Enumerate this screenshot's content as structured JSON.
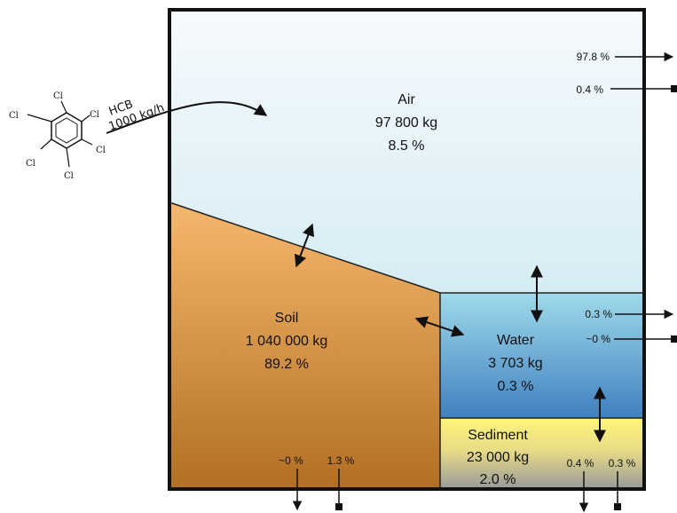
{
  "compartments": {
    "air": {
      "name": "Air",
      "mass": "97 800 kg",
      "share": "8.5 %"
    },
    "soil": {
      "name": "Soil",
      "mass": "1 040 000 kg",
      "share": "89.2 %"
    },
    "water": {
      "name": "Water",
      "mass": "3 703 kg",
      "share": "0.3 %"
    },
    "sediment": {
      "name": "Sediment",
      "mass": "23 000 kg",
      "share": "2.0 %"
    }
  },
  "input": {
    "substance": "HCB",
    "rate": "1000 kg/h"
  },
  "molecule": {
    "substituent": "Cl"
  },
  "flows": {
    "air_advection": "97.8 %",
    "air_reaction": "0.4 %",
    "water_advection": "0.3 %",
    "water_reaction": "~0 %",
    "soil_advection": "~0 %",
    "soil_reaction": "1.3 %",
    "sediment_advection": "0.4 %",
    "sediment_reaction": "0.3 %"
  },
  "colors": {
    "air_top": "#f6fafd",
    "air_bottom": "#bfe3ee",
    "soil_top": "#f6b86e",
    "soil_bottom": "#b26f24",
    "water_top": "#9fdaea",
    "water_bottom": "#3f80c0",
    "sediment_top": "#fff57a",
    "sediment_bottom": "#999999"
  }
}
